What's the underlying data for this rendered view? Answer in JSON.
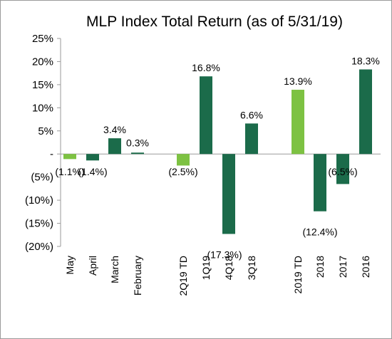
{
  "chart_data": {
    "type": "bar",
    "title": "MLP Index Total Return (as of 5/31/19)",
    "xlabel": "",
    "ylabel": "",
    "ylim": [
      -20,
      25
    ],
    "ytick_values": [
      25,
      20,
      15,
      10,
      5,
      0,
      -5,
      -10,
      -15,
      -20
    ],
    "ytick_labels": [
      "25%",
      "20%",
      "15%",
      "10%",
      "5%",
      "-",
      "(5%)",
      "(10%)",
      "(15%)",
      "(20%)"
    ],
    "grid": false,
    "legend": "none",
    "categories": [
      "May",
      "April",
      "March",
      "February",
      "2Q19 TD",
      "1Q19",
      "4Q18",
      "3Q18",
      "2019 TD",
      "2018",
      "2017",
      "2016"
    ],
    "values": [
      -1.1,
      -1.4,
      3.4,
      0.3,
      -2.5,
      16.8,
      -17.3,
      6.6,
      13.9,
      -12.4,
      -6.5,
      18.3
    ],
    "data_labels": [
      "(1.1%)",
      "(1.4%)",
      "3.4%",
      "0.3%",
      "(2.5%)",
      "16.8%",
      "(17.3%)",
      "6.6%",
      "13.9%",
      "(12.4%)",
      "(6.5%)",
      "18.3%"
    ],
    "bar_colors": [
      "#7dc242",
      "#1b6b4a",
      "#1b6b4a",
      "#1b6b4a",
      "#7dc242",
      "#1b6b4a",
      "#1b6b4a",
      "#1b6b4a",
      "#7dc242",
      "#1b6b4a",
      "#1b6b4a",
      "#1b6b4a"
    ],
    "colors": {
      "light_green": "#7dc242",
      "dark_green": "#1b6b4a"
    }
  }
}
